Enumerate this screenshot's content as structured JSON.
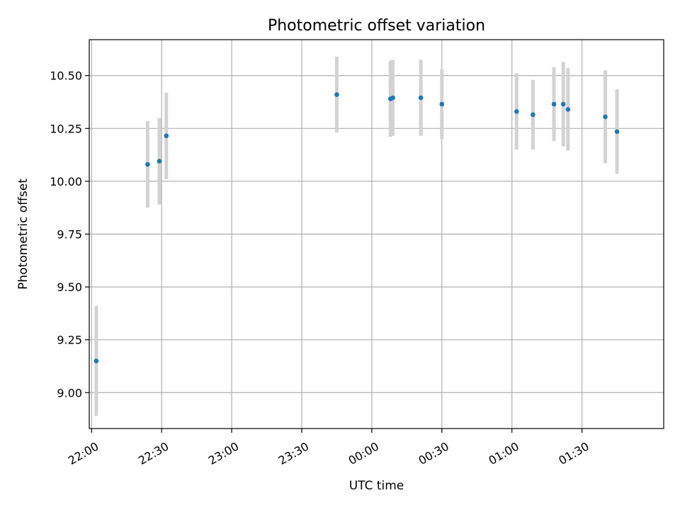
{
  "chart_data": {
    "type": "scatter",
    "title": "Photometric offset variation",
    "xlabel": "UTC time",
    "ylabel": "Photometric offset",
    "grid": true,
    "xlim": [
      "21:59",
      "02:05"
    ],
    "ylim": [
      8.83,
      10.67
    ],
    "x_ticks": [
      "22:00",
      "22:30",
      "23:00",
      "23:30",
      "00:00",
      "00:30",
      "01:00",
      "01:30"
    ],
    "y_ticks": [
      "9.00",
      "9.25",
      "9.50",
      "9.75",
      "10.00",
      "10.25",
      "10.50"
    ],
    "colors": {
      "points": "#1f77b4",
      "errorbars": "#d3d3d3"
    },
    "series": [
      {
        "points": [
          {
            "x": "22:02",
            "y": 9.15,
            "err": 0.26
          },
          {
            "x": "22:24",
            "y": 10.08,
            "err": 0.205
          },
          {
            "x": "22:29",
            "y": 10.095,
            "err": 0.205
          },
          {
            "x": "22:32",
            "y": 10.215,
            "err": 0.205
          },
          {
            "x": "23:45",
            "y": 10.41,
            "err": 0.18
          },
          {
            "x": "00:08",
            "y": 10.39,
            "err": 0.18
          },
          {
            "x": "00:09",
            "y": 10.395,
            "err": 0.18
          },
          {
            "x": "00:21",
            "y": 10.395,
            "err": 0.18
          },
          {
            "x": "00:30",
            "y": 10.365,
            "err": 0.165
          },
          {
            "x": "01:02",
            "y": 10.33,
            "err": 0.18
          },
          {
            "x": "01:09",
            "y": 10.315,
            "err": 0.165
          },
          {
            "x": "01:18",
            "y": 10.365,
            "err": 0.175
          },
          {
            "x": "01:22",
            "y": 10.365,
            "err": 0.2
          },
          {
            "x": "01:24",
            "y": 10.34,
            "err": 0.195
          },
          {
            "x": "01:40",
            "y": 10.305,
            "err": 0.22
          },
          {
            "x": "01:45",
            "y": 10.235,
            "err": 0.2
          }
        ]
      }
    ]
  }
}
